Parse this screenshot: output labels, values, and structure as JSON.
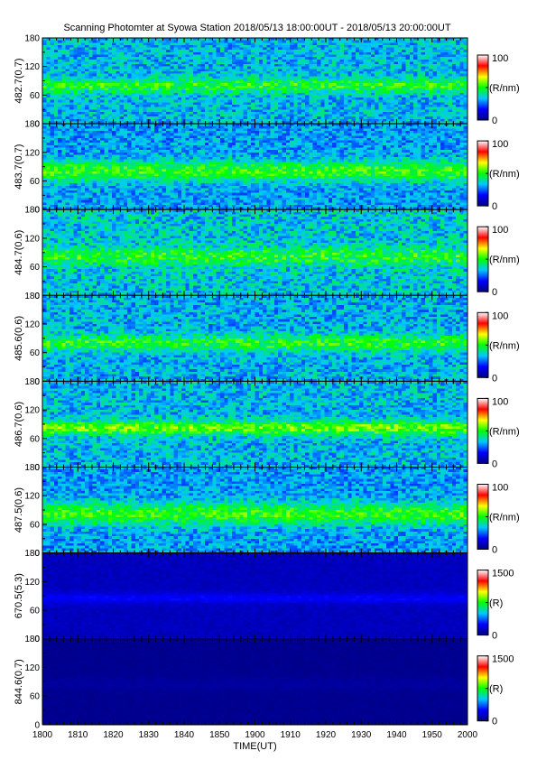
{
  "title": "Scanning Photomter at Syowa Station 2018/05/13 18:00:00UT - 2018/05/13 20:00:00UT",
  "chart_data": {
    "type": "heatmap",
    "xlabel": "TIME(UT)",
    "x_ticks": [
      "1800",
      "1810",
      "1820",
      "1830",
      "1840",
      "1850",
      "1900",
      "1910",
      "1920",
      "1930",
      "1940",
      "1950",
      "2000"
    ],
    "x_range_minutes": [
      0,
      120
    ],
    "y_ticks": [
      "0",
      "60",
      "120",
      "180"
    ],
    "ylim": [
      0,
      180
    ],
    "colormap": [
      "#000080",
      "#0000ff",
      "#00c8ff",
      "#00ff00",
      "#ffff00",
      "#ff0000",
      "#ffffff"
    ],
    "panels": [
      {
        "ylabel": "482.7(0.7)",
        "colorbar_unit": "(R/nm)",
        "colorbar_max_label": "100",
        "colorbar_min_label": "0",
        "background_level": 0.33,
        "band_center": 80,
        "band_width": 10,
        "band_level": 0.5,
        "noise": 0.1
      },
      {
        "ylabel": "483.7(0.7)",
        "colorbar_unit": "(R/nm)",
        "colorbar_max_label": "100",
        "colorbar_min_label": "0",
        "background_level": 0.3,
        "band_center": 80,
        "band_width": 15,
        "band_level": 0.52,
        "noise": 0.09
      },
      {
        "ylabel": "484.7(0.6)",
        "colorbar_unit": "(R/nm)",
        "colorbar_max_label": "100",
        "colorbar_min_label": "0",
        "background_level": 0.35,
        "band_center": 82,
        "band_width": 12,
        "band_level": 0.5,
        "noise": 0.11
      },
      {
        "ylabel": "485.6(0.6)",
        "colorbar_unit": "(R/nm)",
        "colorbar_max_label": "100",
        "colorbar_min_label": "0",
        "background_level": 0.32,
        "band_center": 80,
        "band_width": 12,
        "band_level": 0.5,
        "noise": 0.1
      },
      {
        "ylabel": "486.7(0.6)",
        "colorbar_unit": "(R/nm)",
        "colorbar_max_label": "100",
        "colorbar_min_label": "0",
        "background_level": 0.33,
        "band_center": 82,
        "band_width": 10,
        "band_level": 0.56,
        "noise": 0.1
      },
      {
        "ylabel": "487.5(0.6)",
        "colorbar_unit": "(R/nm)",
        "colorbar_max_label": "100",
        "colorbar_min_label": "0",
        "background_level": 0.3,
        "band_center": 82,
        "band_width": 16,
        "band_level": 0.52,
        "noise": 0.09
      },
      {
        "ylabel": "670.5(5.3)",
        "colorbar_unit": "(R)",
        "colorbar_max_label": "1500",
        "colorbar_min_label": "0",
        "background_level": 0.08,
        "band_center": 85,
        "band_width": 8,
        "band_level": 0.16,
        "noise": 0.02
      },
      {
        "ylabel": "844.6(0.7)",
        "colorbar_unit": "(R)",
        "colorbar_max_label": "1500",
        "colorbar_min_label": "0",
        "background_level": 0.02,
        "band_center": 85,
        "band_width": 10,
        "band_level": 0.04,
        "noise": 0.01
      }
    ]
  }
}
